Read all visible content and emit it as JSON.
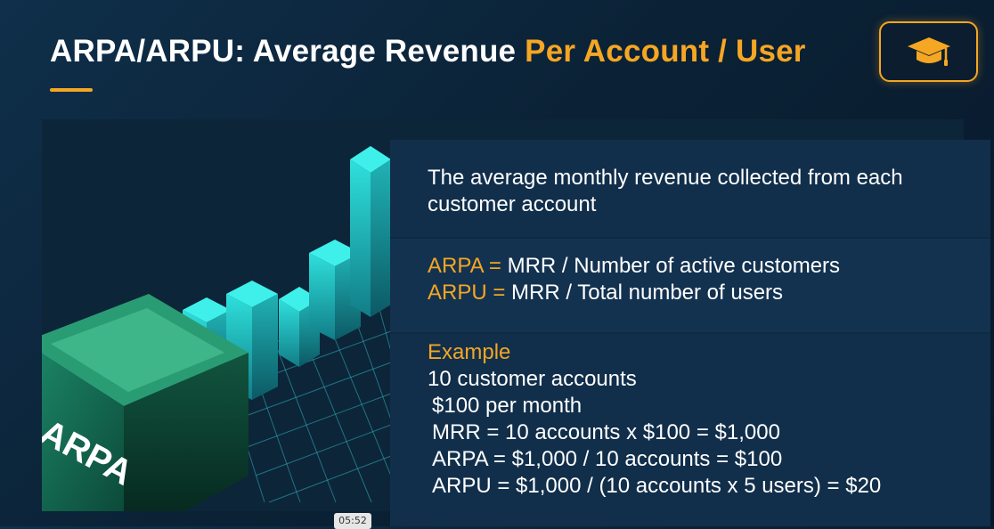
{
  "slide": {
    "title_main": "ARPA/ARPU: Average Revenue",
    "title_accent": "Per Account / User",
    "accent_color": "#f5a623"
  },
  "header_button": {
    "icon": "graduation-cap-icon"
  },
  "illustration": {
    "cube_label": "ARPA"
  },
  "panel": {
    "description": "The average monthly revenue collected from each customer account",
    "formulas": [
      {
        "term": "ARPA =",
        "definition": "MRR / Number of active customers"
      },
      {
        "term": "ARPU =",
        "definition": "MRR / Total number of users"
      }
    ],
    "example": {
      "heading": "Example",
      "lines": [
        "10 customer accounts",
        "$100 per month",
        "MRR = 10 accounts x $100 = $1,000",
        "ARPA = $1,000 / 10 accounts = $100",
        "ARPU = $1,000 / (10 accounts x 5 users) = $20"
      ]
    }
  },
  "video": {
    "timestamp": "05:52"
  }
}
